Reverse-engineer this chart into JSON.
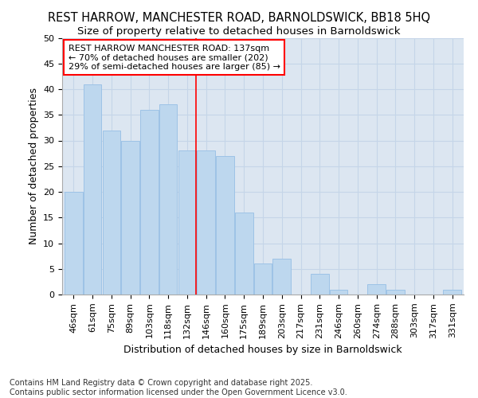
{
  "title": "REST HARROW, MANCHESTER ROAD, BARNOLDSWICK, BB18 5HQ",
  "subtitle": "Size of property relative to detached houses in Barnoldswick",
  "xlabel": "Distribution of detached houses by size in Barnoldswick",
  "ylabel": "Number of detached properties",
  "categories": [
    "46sqm",
    "61sqm",
    "75sqm",
    "89sqm",
    "103sqm",
    "118sqm",
    "132sqm",
    "146sqm",
    "160sqm",
    "175sqm",
    "189sqm",
    "203sqm",
    "217sqm",
    "231sqm",
    "246sqm",
    "260sqm",
    "274sqm",
    "288sqm",
    "303sqm",
    "317sqm",
    "331sqm"
  ],
  "values": [
    20,
    41,
    32,
    30,
    36,
    37,
    28,
    28,
    27,
    16,
    6,
    7,
    0,
    4,
    1,
    0,
    2,
    1,
    0,
    0,
    1
  ],
  "bar_color": "#bdd7ee",
  "bar_edgecolor": "#9dc3e6",
  "redline_label": "REST HARROW MANCHESTER ROAD: 137sqm",
  "annotation_line2": "← 70% of detached houses are smaller (202)",
  "annotation_line3": "29% of semi-detached houses are larger (85) →",
  "ylim": [
    0,
    50
  ],
  "yticks": [
    0,
    5,
    10,
    15,
    20,
    25,
    30,
    35,
    40,
    45,
    50
  ],
  "figure_bg": "#ffffff",
  "plot_bg": "#dce6f1",
  "grid_color": "#c5d5e8",
  "footer_line1": "Contains HM Land Registry data © Crown copyright and database right 2025.",
  "footer_line2": "Contains public sector information licensed under the Open Government Licence v3.0.",
  "title_fontsize": 10.5,
  "subtitle_fontsize": 9.5,
  "axis_label_fontsize": 9,
  "tick_fontsize": 8,
  "annotation_fontsize": 8,
  "footer_fontsize": 7
}
